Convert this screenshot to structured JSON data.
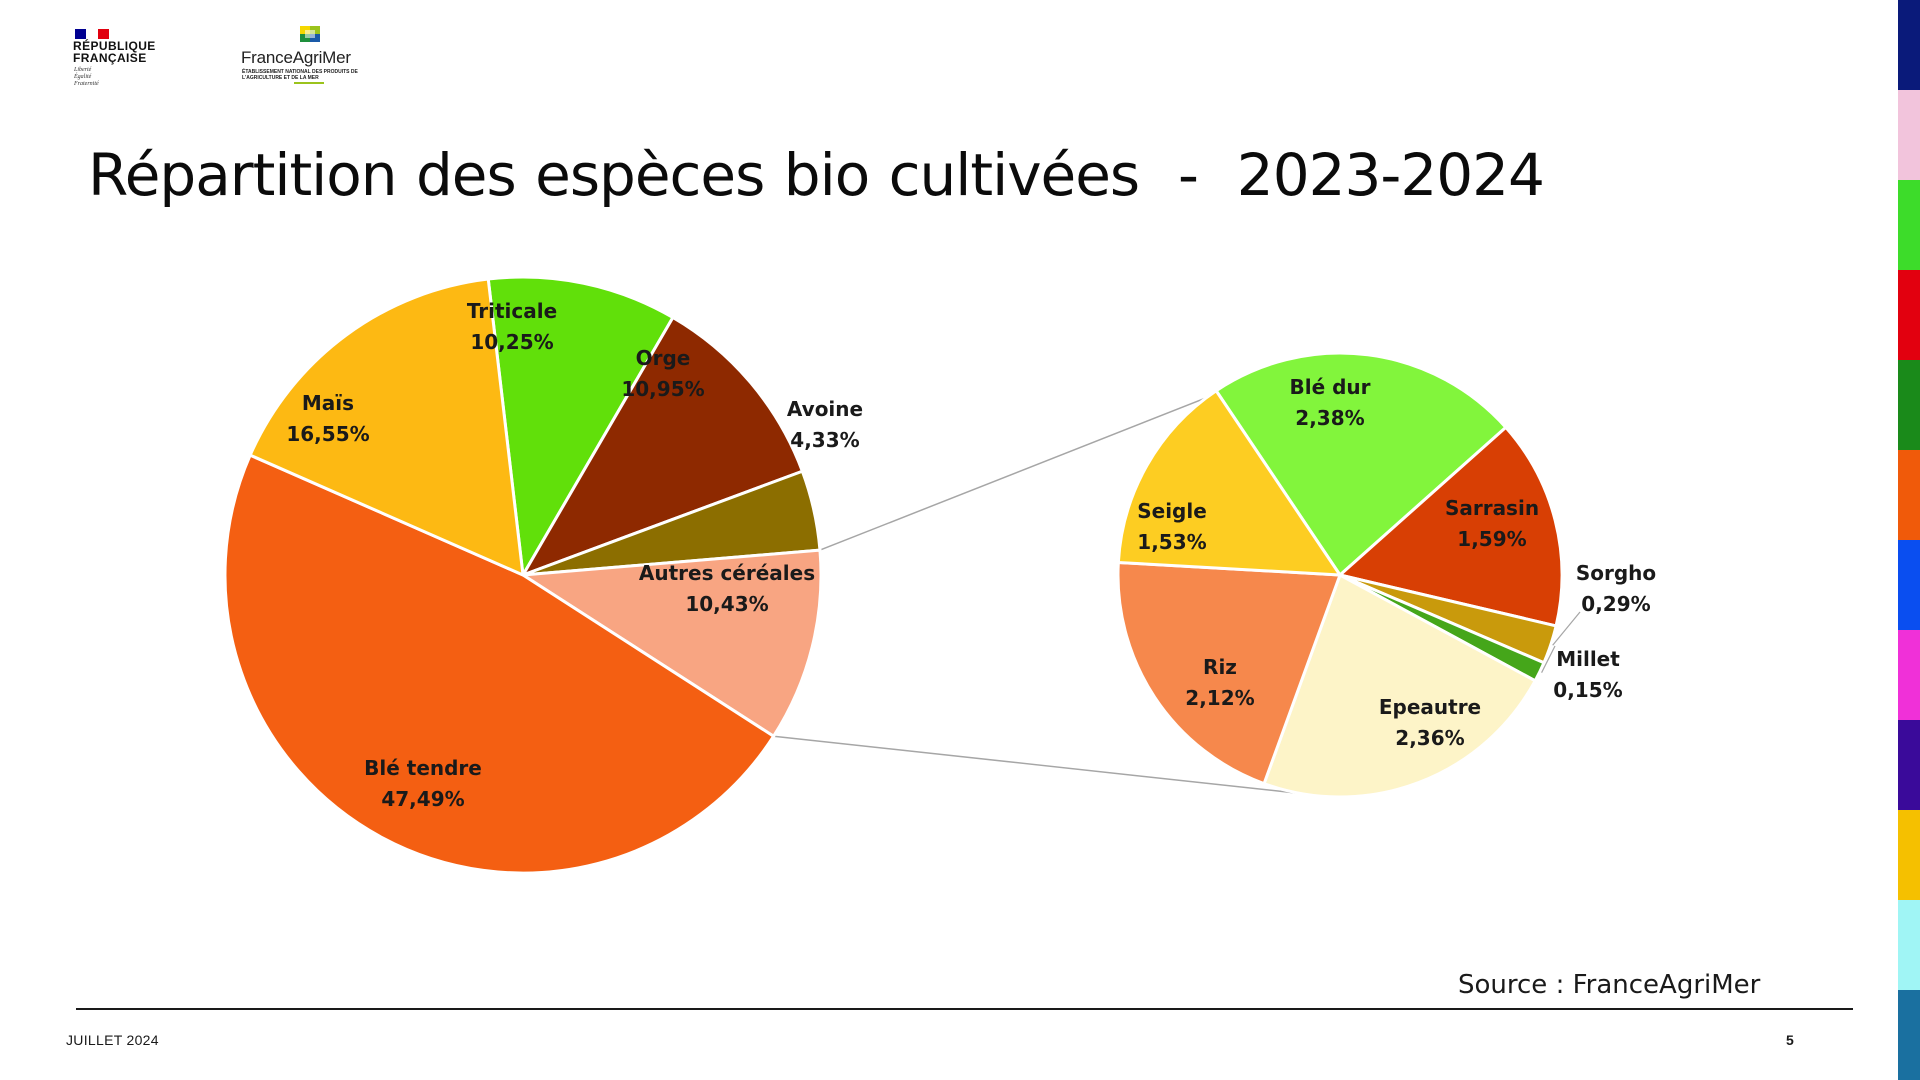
{
  "header": {
    "logo_republique": "RÉPUBLIQUE\nFRANÇAISE",
    "logo_republique_motto": "Liberté\nÉgalité\nFraternité",
    "logo_franceagrimer": "FranceAgriMer",
    "logo_franceagrimer_sub": "ÉTABLISSEMENT NATIONAL DES PRODUITS DE L'AGRICULTURE ET DE LA MER"
  },
  "title": "Répartition des espèces bio cultivées  -  2023-2024",
  "source": "Source : FranceAgriMer",
  "footer": {
    "date": "JUILLET 2024",
    "page": "5"
  },
  "colors": {
    "sidebar_stripes": [
      "#0a1a7a",
      "#f2c4dc",
      "#3ddc2a",
      "#e2000f",
      "#1a8a1a",
      "#f05a0a",
      "#0a4ef0",
      "#f030d8",
      "#3a0a9a",
      "#f5c000",
      "#a0f5f5",
      "#1a70a0"
    ],
    "connector_line": "#a6a6a6"
  },
  "chart_data": [
    {
      "type": "pie",
      "title": "",
      "unit": "%",
      "slices": [
        {
          "label": "Triticale",
          "value_text": "10,25%",
          "value": 10.25,
          "color": "#61e00a"
        },
        {
          "label": "Orge",
          "value_text": "10,95%",
          "value": 10.95,
          "color": "#8e2900"
        },
        {
          "label": "Avoine",
          "value_text": "4,33%",
          "value": 4.33,
          "color": "#8c6e00"
        },
        {
          "label": "Autres céréales",
          "value_text": "10,43%",
          "value": 10.43,
          "color": "#f8a582"
        },
        {
          "label": "Blé tendre",
          "value_text": "47,49%",
          "value": 47.49,
          "color": "#f45f12"
        },
        {
          "label": "Maïs",
          "value_text": "16,55%",
          "value": 16.55,
          "color": "#fdb913"
        }
      ]
    },
    {
      "type": "pie",
      "title": "",
      "unit": "%",
      "breakdown_of": "Autres céréales",
      "slices": [
        {
          "label": "Blé dur",
          "value_text": "2,38%",
          "value": 2.38,
          "color": "#82f53c"
        },
        {
          "label": "Sarrasin",
          "value_text": "1,59%",
          "value": 1.59,
          "color": "#d83f04"
        },
        {
          "label": "Sorgho",
          "value_text": "0,29%",
          "value": 0.29,
          "color": "#c99a0c"
        },
        {
          "label": "Millet",
          "value_text": "0,15%",
          "value": 0.15,
          "color": "#45a61a"
        },
        {
          "label": "Epeautre",
          "value_text": "2,36%",
          "value": 2.36,
          "color": "#fdf4c8"
        },
        {
          "label": "Riz",
          "value_text": "2,12%",
          "value": 2.12,
          "color": "#f6884c"
        },
        {
          "label": "Seigle",
          "value_text": "1,53%",
          "value": 1.53,
          "color": "#fdcd22"
        }
      ]
    }
  ]
}
